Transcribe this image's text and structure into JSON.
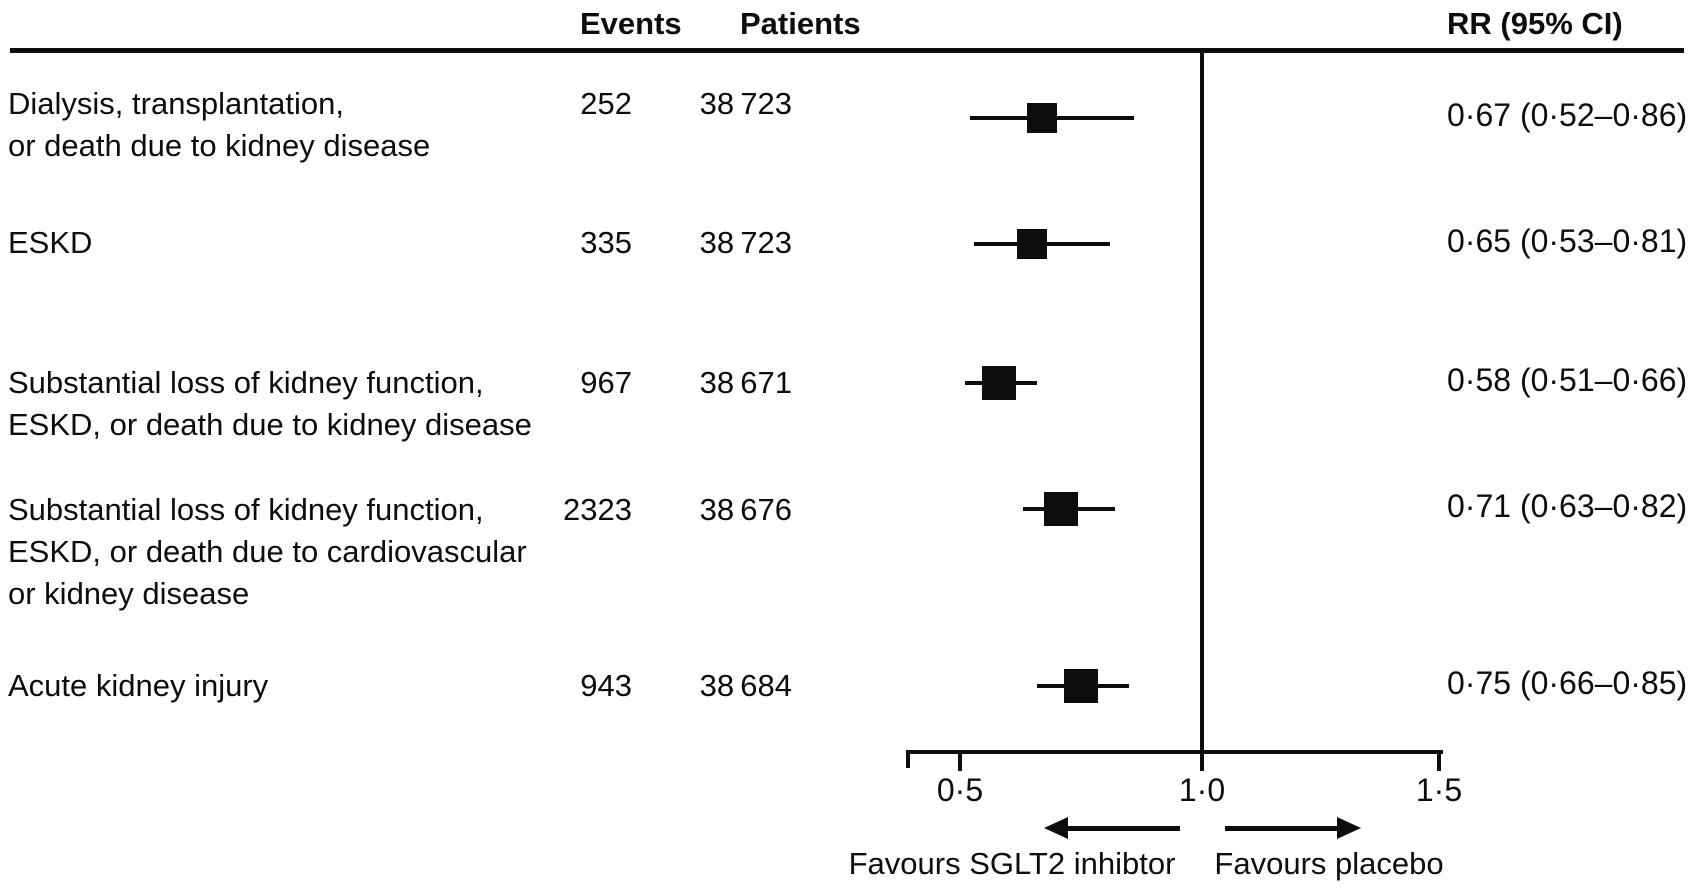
{
  "header": {
    "events_label": "Events",
    "patients_label": "Patients",
    "rr_label": "RR (95% CI)"
  },
  "footer": {
    "favours_left": "Favours SGLT2 inhibtor",
    "favours_right": "Favours placebo"
  },
  "colors": {
    "ink": "#0d0d0d",
    "background": "#ffffff"
  },
  "chart_data": {
    "type": "forest",
    "title": "",
    "x_axis": {
      "scale": "linear",
      "range": [
        0.39,
        1.5
      ],
      "reference_value": 1.0,
      "ticks": [
        {
          "value": 0.5,
          "label": "0·5"
        },
        {
          "value": 1.0,
          "label": "1·0"
        },
        {
          "value": 1.5,
          "label": "1·5"
        }
      ]
    },
    "rows": [
      {
        "label_lines": [
          "Dialysis, transplantation,",
          "or death due to kidney disease"
        ],
        "events": "252",
        "patients": "38 723",
        "rr": 0.67,
        "ci_low": 0.52,
        "ci_high": 0.86,
        "rr_text": "0·67 (0·52–0·86)",
        "marker_size": 30
      },
      {
        "label_lines": [
          "ESKD"
        ],
        "events": "335",
        "patients": "38 723",
        "rr": 0.65,
        "ci_low": 0.53,
        "ci_high": 0.81,
        "rr_text": "0·65 (0·53–0·81)",
        "marker_size": 30
      },
      {
        "label_lines": [
          "Substantial loss of kidney function,",
          "ESKD, or death due to kidney disease"
        ],
        "events": "967",
        "patients": "38 671",
        "rr": 0.58,
        "ci_low": 0.51,
        "ci_high": 0.66,
        "rr_text": "0·58 (0·51–0·66)",
        "marker_size": 34
      },
      {
        "label_lines": [
          "Substantial loss of kidney function,",
          "ESKD, or death due to cardiovascular",
          "or kidney disease"
        ],
        "events": "2323",
        "patients": "38 676",
        "rr": 0.71,
        "ci_low": 0.63,
        "ci_high": 0.82,
        "rr_text": "0·71 (0·63–0·82)",
        "marker_size": 34
      },
      {
        "label_lines": [
          "Acute kidney injury"
        ],
        "events": "943",
        "patients": "38 684",
        "rr": 0.75,
        "ci_low": 0.66,
        "ci_high": 0.85,
        "rr_text": "0·75 (0·66–0·85)",
        "marker_size": 34
      }
    ],
    "legend": null,
    "grid": false
  }
}
